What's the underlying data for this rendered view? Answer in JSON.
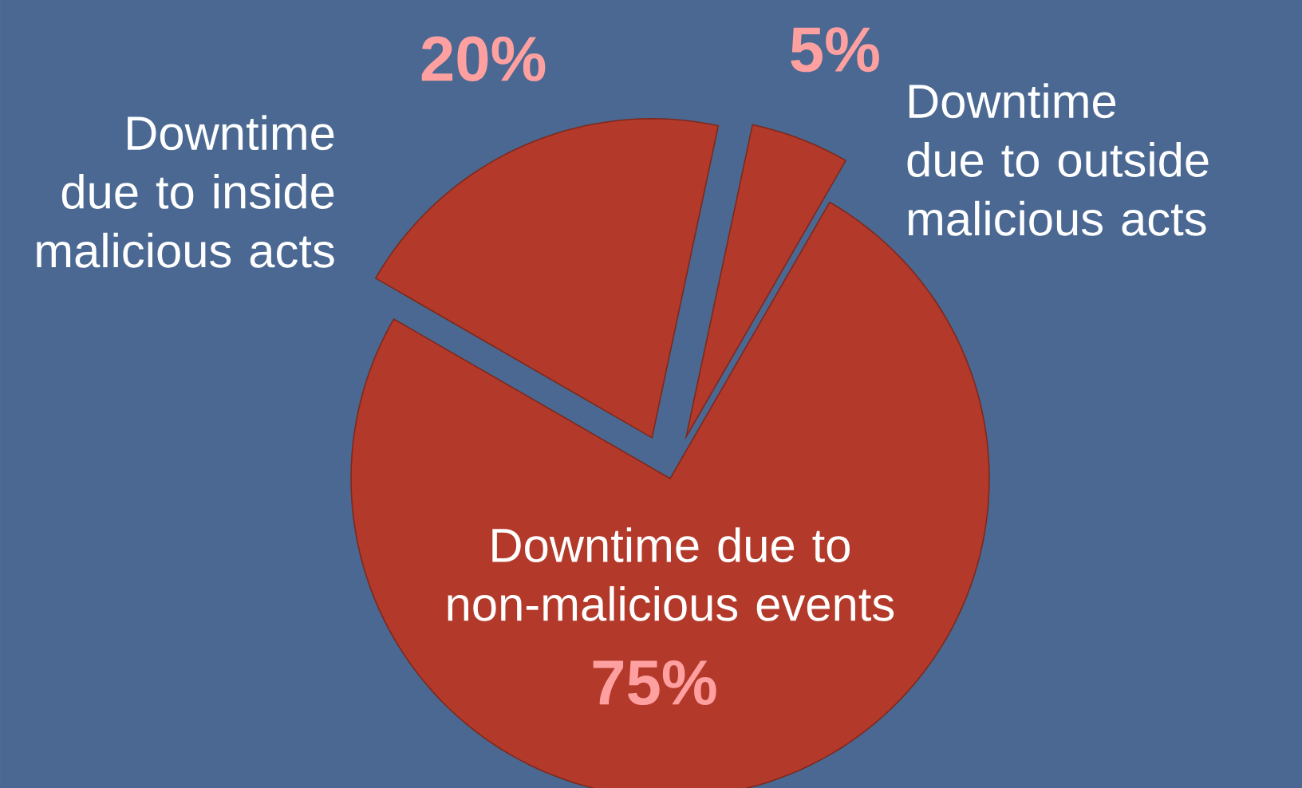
{
  "chart_data": {
    "type": "pie",
    "categories": [
      "Downtime due to non-malicious events",
      "Downtime due to outside malicious acts",
      "Downtime due to inside malicious acts"
    ],
    "values": [
      75,
      5,
      20
    ],
    "value_labels": [
      "75%",
      "5%",
      "20%"
    ],
    "data_labels": true,
    "colors": [
      "#b33a2a",
      "#b33a2a",
      "#b33a2a"
    ]
  }
}
